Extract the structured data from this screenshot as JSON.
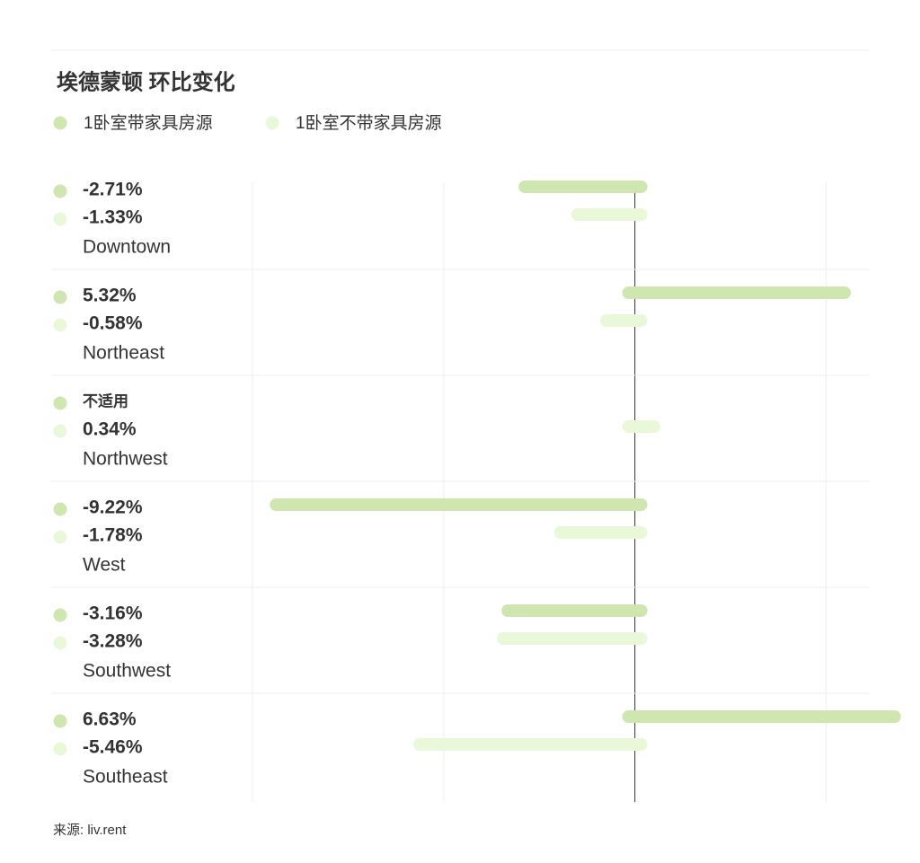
{
  "chart_data": {
    "type": "bar",
    "orientation": "horizontal",
    "title": "埃德蒙顿 环比变化",
    "categories": [
      "Downtown",
      "Northeast",
      "Northwest",
      "West",
      "Southwest",
      "Southeast"
    ],
    "series": [
      {
        "name": "1卧室带家具房源",
        "color": "#cfe6b0",
        "values": [
          -2.71,
          5.32,
          null,
          -9.22,
          -3.16,
          6.63
        ],
        "value_labels": [
          "-2.71%",
          "5.32%",
          "不适用",
          "-9.22%",
          "-3.16%",
          "6.63%"
        ]
      },
      {
        "name": "1卧室不带家具房源",
        "color": "#e8f8d8",
        "values": [
          -1.33,
          -0.58,
          0.34,
          -1.78,
          -3.28,
          -5.46
        ],
        "value_labels": [
          "-1.33%",
          "-0.58%",
          "0.34%",
          "-1.78%",
          "-3.28%",
          "-5.46%"
        ]
      }
    ],
    "xlim": [
      -10,
      6
    ],
    "xticks": [
      -10,
      -5,
      0,
      5
    ],
    "grid": true,
    "source": "来源: liv.rent"
  }
}
